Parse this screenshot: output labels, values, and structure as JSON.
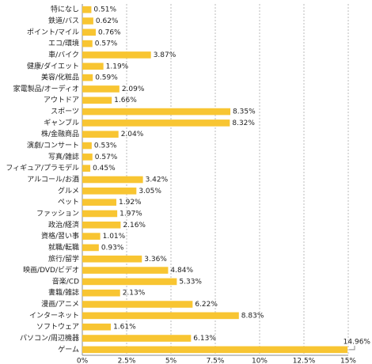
{
  "chart_data": {
    "type": "bar",
    "orientation": "horizontal",
    "categories": [
      "特になし",
      "鉄道/バス",
      "ポイント/マイル",
      "エコ/環境",
      "車/バイク",
      "健康/ダイエット",
      "美容/化粧品",
      "家電製品/オーディオ",
      "アウトドア",
      "スポーツ",
      "ギャンブル",
      "株/金融商品",
      "演劇/コンサート",
      "写真/雑誌",
      "フィギュア/プラモデル",
      "アルコール/お酒",
      "グルメ",
      "ペット",
      "ファッション",
      "政治/経済",
      "資格/習い事",
      "就職/転職",
      "旅行/留学",
      "映画/DVD/ビデオ",
      "音楽/CD",
      "書籍/雑誌",
      "漫画/アニメ",
      "インターネット",
      "ソフトウェア",
      "パソコン/周辺機器",
      "ゲーム"
    ],
    "values": [
      0.51,
      0.62,
      0.76,
      0.57,
      3.87,
      1.19,
      0.59,
      2.09,
      1.66,
      8.35,
      8.32,
      2.04,
      0.53,
      0.57,
      0.45,
      3.42,
      3.05,
      1.92,
      1.97,
      2.16,
      1.01,
      0.93,
      3.36,
      4.84,
      5.33,
      2.13,
      6.22,
      8.83,
      1.61,
      6.13,
      14.96
    ],
    "value_labels": [
      "0.51%",
      "0.62%",
      "0.76%",
      "0.57%",
      "3.87%",
      "1.19%",
      "0.59%",
      "2.09%",
      "1.66%",
      "8.35%",
      "8.32%",
      "2.04%",
      "0.53%",
      "0.57%",
      "0.45%",
      "3.42%",
      "3.05%",
      "1.92%",
      "1.97%",
      "2.16%",
      "1.01%",
      "0.93%",
      "3.36%",
      "4.84%",
      "5.33%",
      "2.13%",
      "6.22%",
      "8.83%",
      "1.61%",
      "6.13%",
      "14.96%"
    ],
    "color": "#f8c532",
    "xlim": [
      0,
      15
    ],
    "xticks": [
      {
        "value": 0,
        "label": "0%"
      },
      {
        "value": 2.5,
        "label": "2.5%"
      },
      {
        "value": 5,
        "label": "5%"
      },
      {
        "value": 7.5,
        "label": "7.5%"
      },
      {
        "value": 10,
        "label": "10%"
      },
      {
        "value": 12.5,
        "label": "12.5%"
      },
      {
        "value": 15,
        "label": "15%"
      }
    ],
    "grid": true
  }
}
